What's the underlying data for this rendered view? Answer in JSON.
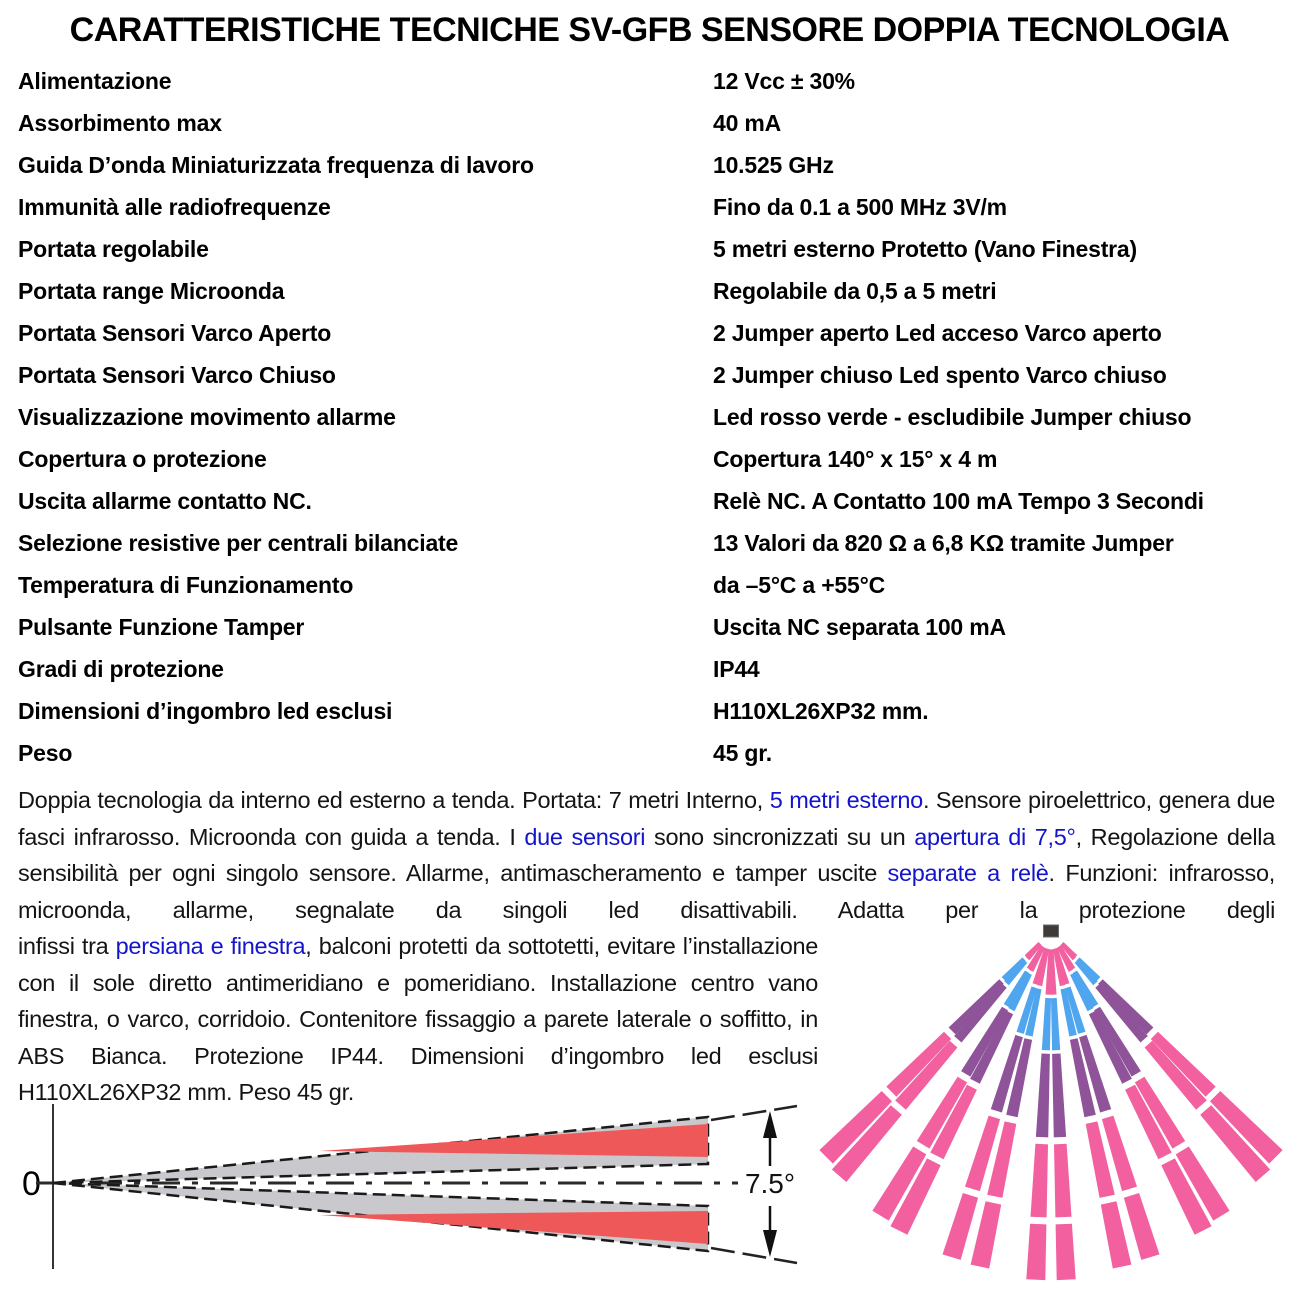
{
  "title": "CARATTERISTICHE TECNICHE SV-GFB SENSORE DOPPIA TECNOLOGIA",
  "spec_rows": [
    {
      "label": "Alimentazione",
      "value": "12 Vcc ± 30%"
    },
    {
      "label": "Assorbimento max",
      "value": "40 mA"
    },
    {
      "label": "Guida D’onda Miniaturizzata frequenza di lavoro",
      "value": "10.525 GHz"
    },
    {
      "label": "Immunità alle radiofrequenze",
      "value": "Fino da 0.1 a 500 MHz 3V/m"
    },
    {
      "label": "Portata regolabile",
      "value": "5 metri esterno Protetto (Vano Finestra)"
    },
    {
      "label": "Portata range Microonda",
      "value": "Regolabile da 0,5 a 5 metri"
    },
    {
      "label": "Portata Sensori Varco Aperto",
      "value": "2 Jumper aperto Led acceso Varco aperto"
    },
    {
      "label": "Portata Sensori Varco Chiuso",
      "value": "2 Jumper chiuso Led spento Varco chiuso"
    },
    {
      "label": "Visualizzazione movimento allarme",
      "value": "Led rosso verde - escludibile Jumper chiuso"
    },
    {
      "label": "Copertura o protezione",
      "value": "Copertura 140° x 15° x 4 m"
    },
    {
      "label": "Uscita allarme contatto NC.",
      "value": "Relè NC. A Contatto 100 mA Tempo 3 Secondi"
    },
    {
      "label": "Selezione resistive per centrali bilanciate",
      "value": "13 Valori da 820 Ω a 6,8 KΩ tramite Jumper"
    },
    {
      "label": "Temperatura di Funzionamento",
      "value": "da –5°C a +55°C"
    },
    {
      "label": "Pulsante Funzione Tamper",
      "value": "Uscita NC separata 100 mA"
    },
    {
      "label": "Gradi di protezione",
      "value": "IP44"
    },
    {
      "label": "Dimensioni d’ingombro led esclusi",
      "value": "H110XL26XP32 mm."
    },
    {
      "label": "Peso",
      "value": "45 gr."
    }
  ],
  "description": {
    "para1_runs": [
      {
        "text": "Doppia tecnologia da interno ed esterno a tenda. Portata: 7 metri Interno, ",
        "style": "normal"
      },
      {
        "text": "5 metri esterno",
        "style": "link"
      },
      {
        "text": ". Sensore piroelettrico, genera due fasci infrarosso. Microonda con guida a tenda. I ",
        "style": "normal"
      },
      {
        "text": "due sensori",
        "style": "link"
      },
      {
        "text": " sono sincronizzati su un ",
        "style": "normal"
      },
      {
        "text": "apertura di 7,5°",
        "style": "link"
      },
      {
        "text": ", Regolazione della sensibilità per ogni singolo sensore. Allarme, antimascheramento e tamper uscite ",
        "style": "normal"
      },
      {
        "text": "separate a relè",
        "style": "link"
      },
      {
        "text": ". Funzioni: infrarosso, microonda, allarme, segnalate da singoli led disattivabili. Adatta per la protezione degli",
        "style": "normal"
      }
    ],
    "para2_runs": [
      {
        "text": "infissi tra ",
        "style": "normal"
      },
      {
        "text": "persiana e finestra",
        "style": "link"
      },
      {
        "text": ", balconi protetti da sottotetti, evitare l’installazione con il sole diretto antimeridiano e pomeridiano. Installa­zione centro vano finestra, o varco, corridoio. Contenitore fissaggio a parete laterale o soffitto, in ABS Bianca. Protezione IP44. Dimensioni d’ingombro led esclusi H110XL26XP32 mm.  Peso 45 gr.",
        "style": "normal"
      }
    ]
  },
  "diagram_labels": {
    "zero": "0",
    "angle": "7.5°"
  },
  "colors": {
    "link_blue": "#1414cc",
    "beam_pink": "#f2609f",
    "beam_purple": "#8e5398",
    "beam_blue": "#4fa6ef",
    "wedge_red": "#ef5858",
    "wedge_gray": "#c9c9cd"
  }
}
